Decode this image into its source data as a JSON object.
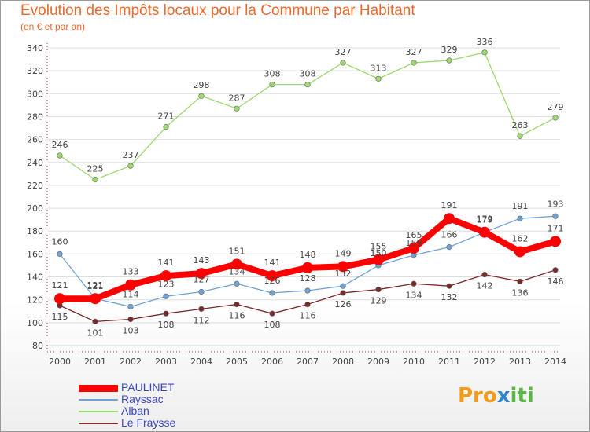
{
  "header": {
    "title": "Evolution des Impôts locaux pour la Commune par Habitant",
    "subtitle": "(en € et par an)"
  },
  "chart_data": {
    "type": "line",
    "title": "Evolution des Impôts locaux pour la Commune par Habitant",
    "subtitle": "(en € et par an)",
    "xlabel": "",
    "ylabel": "",
    "x": [
      "2000",
      "2001",
      "2002",
      "2003",
      "2004",
      "2005",
      "2006",
      "2007",
      "2008",
      "2009",
      "2010",
      "2011",
      "2012",
      "2013",
      "2014"
    ],
    "ylim": [
      80,
      340
    ],
    "yticks": [
      80,
      100,
      120,
      140,
      160,
      180,
      200,
      220,
      240,
      260,
      280,
      300,
      320,
      340
    ],
    "grid": "horizontal",
    "legend_position": "bottom-left",
    "series": [
      {
        "name": "PAULINET",
        "color": "#ff0000",
        "values": [
          121,
          121,
          133,
          141,
          143,
          151,
          141,
          148,
          149,
          155,
          165,
          191,
          179,
          162,
          171
        ]
      },
      {
        "name": "Rayssac",
        "color": "#6fa3d6",
        "values": [
          160,
          121,
          114,
          123,
          127,
          134,
          126,
          128,
          132,
          150,
          159,
          166,
          179,
          191,
          193
        ]
      },
      {
        "name": "Alban",
        "color": "#9bd96d",
        "values": [
          246,
          225,
          237,
          271,
          298,
          287,
          308,
          308,
          327,
          313,
          327,
          329,
          336,
          263,
          279
        ]
      },
      {
        "name": "Le Fraysse",
        "color": "#7a2a2a",
        "values": [
          115,
          101,
          103,
          108,
          112,
          116,
          108,
          116,
          126,
          129,
          134,
          132,
          142,
          136,
          146
        ]
      }
    ]
  },
  "legend": {
    "items": [
      {
        "label": "PAULINET"
      },
      {
        "label": "Rayssac"
      },
      {
        "label": "Alban"
      },
      {
        "label": "Le Fraysse"
      }
    ]
  },
  "logo": {
    "part1": "Pro",
    "part2": "x",
    "part3": "iti"
  }
}
